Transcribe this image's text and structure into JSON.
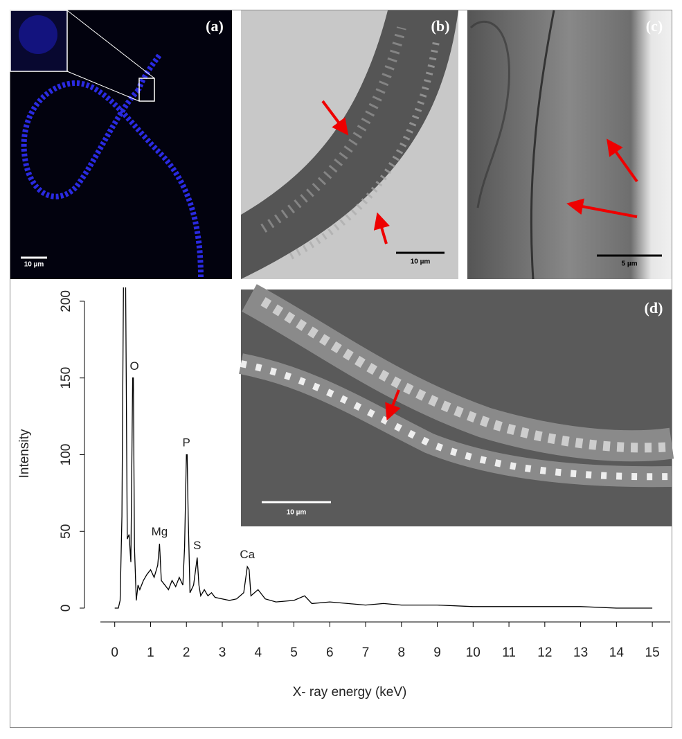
{
  "chart_data": {
    "type": "line",
    "xlabel": "X- ray energy (keV)",
    "ylabel": "Intensity",
    "color": "#000000",
    "x": [
      0,
      0.1,
      0.15,
      0.2,
      0.25,
      0.3,
      0.35,
      0.4,
      0.45,
      0.5,
      0.52,
      0.55,
      0.6,
      0.65,
      0.7,
      0.8,
      0.9,
      1.0,
      1.1,
      1.2,
      1.25,
      1.3,
      1.4,
      1.5,
      1.6,
      1.7,
      1.8,
      1.9,
      1.95,
      2.0,
      2.02,
      2.05,
      2.1,
      2.2,
      2.3,
      2.35,
      2.4,
      2.5,
      2.6,
      2.7,
      2.8,
      3.0,
      3.2,
      3.4,
      3.6,
      3.7,
      3.75,
      3.8,
      3.9,
      4.0,
      4.2,
      4.5,
      5.0,
      5.3,
      5.5,
      6.0,
      6.5,
      7.0,
      7.5,
      8.0,
      9,
      10,
      11,
      12,
      13,
      14,
      15
    ],
    "values": [
      0,
      0,
      5,
      60,
      230,
      230,
      45,
      48,
      30,
      150,
      150,
      40,
      5,
      15,
      12,
      18,
      22,
      25,
      20,
      28,
      42,
      18,
      15,
      12,
      18,
      14,
      20,
      15,
      40,
      100,
      100,
      60,
      10,
      15,
      33,
      15,
      8,
      12,
      8,
      10,
      7,
      6,
      5,
      6,
      10,
      27,
      25,
      8,
      10,
      12,
      6,
      4,
      5,
      8,
      3,
      4,
      3,
      2,
      3,
      2,
      2,
      1,
      1,
      1,
      1,
      0,
      0
    ],
    "xlim": [
      -0.4,
      15.5
    ],
    "ylim": [
      0,
      209
    ],
    "xticks": [
      0,
      1,
      2,
      3,
      4,
      5,
      6,
      7,
      8,
      9,
      10,
      11,
      12,
      13,
      14,
      15
    ],
    "yticks": [
      0,
      50,
      100,
      150,
      200
    ],
    "annotations": [
      {
        "text": "O",
        "x": 0.55,
        "y": 152
      },
      {
        "text": "Mg",
        "x": 1.25,
        "y": 44
      },
      {
        "text": "P",
        "x": 2.0,
        "y": 102
      },
      {
        "text": "S",
        "x": 2.3,
        "y": 35
      },
      {
        "text": "Ca",
        "x": 3.7,
        "y": 29
      }
    ]
  },
  "panels": [
    {
      "label": "(a)",
      "scale_bar": "10 µm"
    },
    {
      "label": "(b)",
      "scale_bar": "10 µm"
    },
    {
      "label": "(c)",
      "scale_bar": "5 µm"
    },
    {
      "label": "(d)",
      "scale_bar": "10 µm"
    }
  ]
}
